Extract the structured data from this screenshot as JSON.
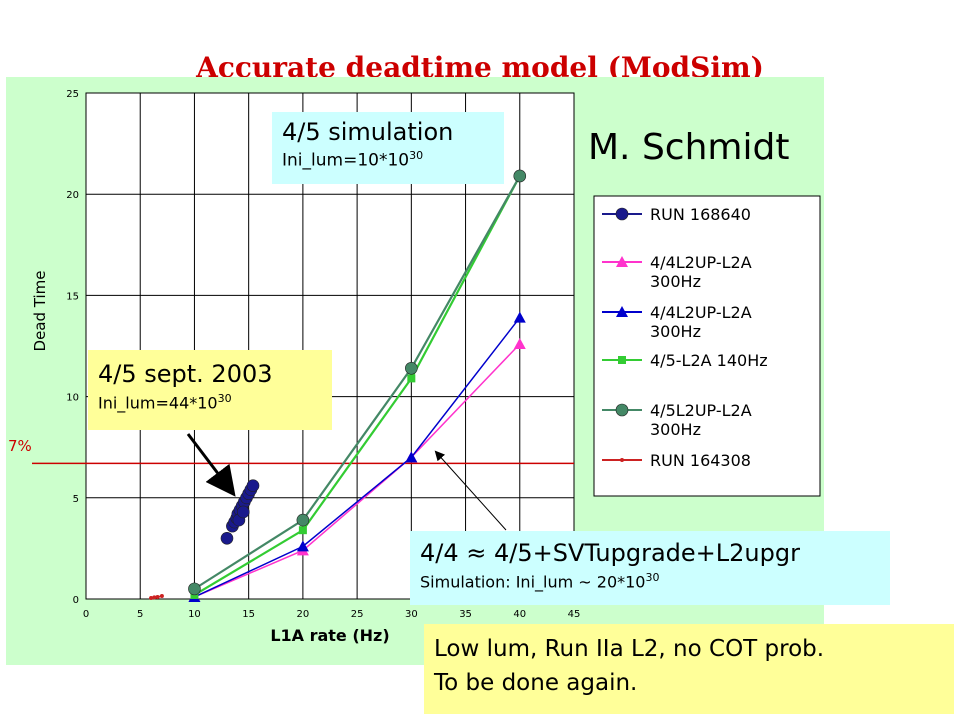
{
  "title": "Accurate deadtime model (ModSim)",
  "author": "M. Schmidt",
  "threshold_label": "7%",
  "boxes": {
    "sim45": {
      "line1": "4/5 simulation",
      "line2_prefix": "Ini_lum=10*10",
      "line2_sup": "30"
    },
    "sept2003": {
      "line1": "4/5 sept. 2003",
      "line2_prefix": "Ini_lum=44*10",
      "line2_sup": "30"
    },
    "upgrade": {
      "line1": "4/4 ≈ 4/5+SVTupgrade+L2upgr",
      "line2_prefix": "Simulation: Ini_lum ~ 20*10",
      "line2_sup": "30"
    },
    "note": {
      "line1": "Low lum, Run IIa L2, no COT prob.",
      "line2": "To be done again."
    }
  },
  "chart_data": {
    "type": "line",
    "xlabel": "L1A rate (Hz)",
    "ylabel": "Dead Time",
    "xlim": [
      0,
      45
    ],
    "ylim": [
      0,
      25
    ],
    "xticks": [
      0,
      5,
      10,
      15,
      20,
      25,
      30,
      35,
      40,
      45
    ],
    "yticks": [
      0,
      5,
      10,
      15,
      20,
      25
    ],
    "grid": true,
    "legend_position": "right",
    "threshold": 6.7,
    "series": [
      {
        "name": "RUN 168640",
        "color": "#1a1a8c",
        "marker": "circle",
        "lines": false,
        "x": [
          13.5,
          13.7,
          13.9,
          14.0,
          14.2,
          14.4,
          14.6,
          14.8,
          15.0,
          15.2,
          15.4,
          14.1,
          14.5
        ],
        "y": [
          3.6,
          3.8,
          4.0,
          4.2,
          4.4,
          4.6,
          4.8,
          5.0,
          5.2,
          5.4,
          5.6,
          3.9,
          4.3
        ]
      },
      {
        "name": "4/4L2UP-L2A 300Hz",
        "color": "#ff33cc",
        "marker": "triangle",
        "lines": true,
        "x": [
          10,
          20,
          30,
          40
        ],
        "y": [
          0.1,
          2.4,
          7.0,
          12.6
        ]
      },
      {
        "name": "4/4L2UP-L2A 300Hz",
        "color": "#0000cc",
        "marker": "triangle",
        "lines": true,
        "x": [
          10,
          20,
          30,
          40
        ],
        "y": [
          0.1,
          2.6,
          7.0,
          13.9
        ]
      },
      {
        "name": "4/5-L2A 140Hz",
        "color": "#33cc33",
        "marker": "square",
        "lines": true,
        "x": [
          10,
          20,
          30,
          40
        ],
        "y": [
          0.2,
          3.4,
          10.9,
          20.9
        ]
      },
      {
        "name": "4/5L2UP-L2A 300Hz",
        "color": "#448866",
        "marker": "circle",
        "lines": true,
        "x": [
          10,
          20,
          30,
          40
        ],
        "y": [
          0.5,
          3.9,
          11.4,
          20.9
        ]
      },
      {
        "name": "RUN 164308",
        "color": "#cc2222",
        "marker": "dot",
        "lines": true,
        "x": [
          6.0,
          6.3,
          6.6,
          7.0
        ],
        "y": [
          0.05,
          0.08,
          0.1,
          0.15
        ]
      }
    ],
    "extra_points": [
      {
        "x": 13.0,
        "y": 3.0,
        "series": 0
      }
    ]
  }
}
